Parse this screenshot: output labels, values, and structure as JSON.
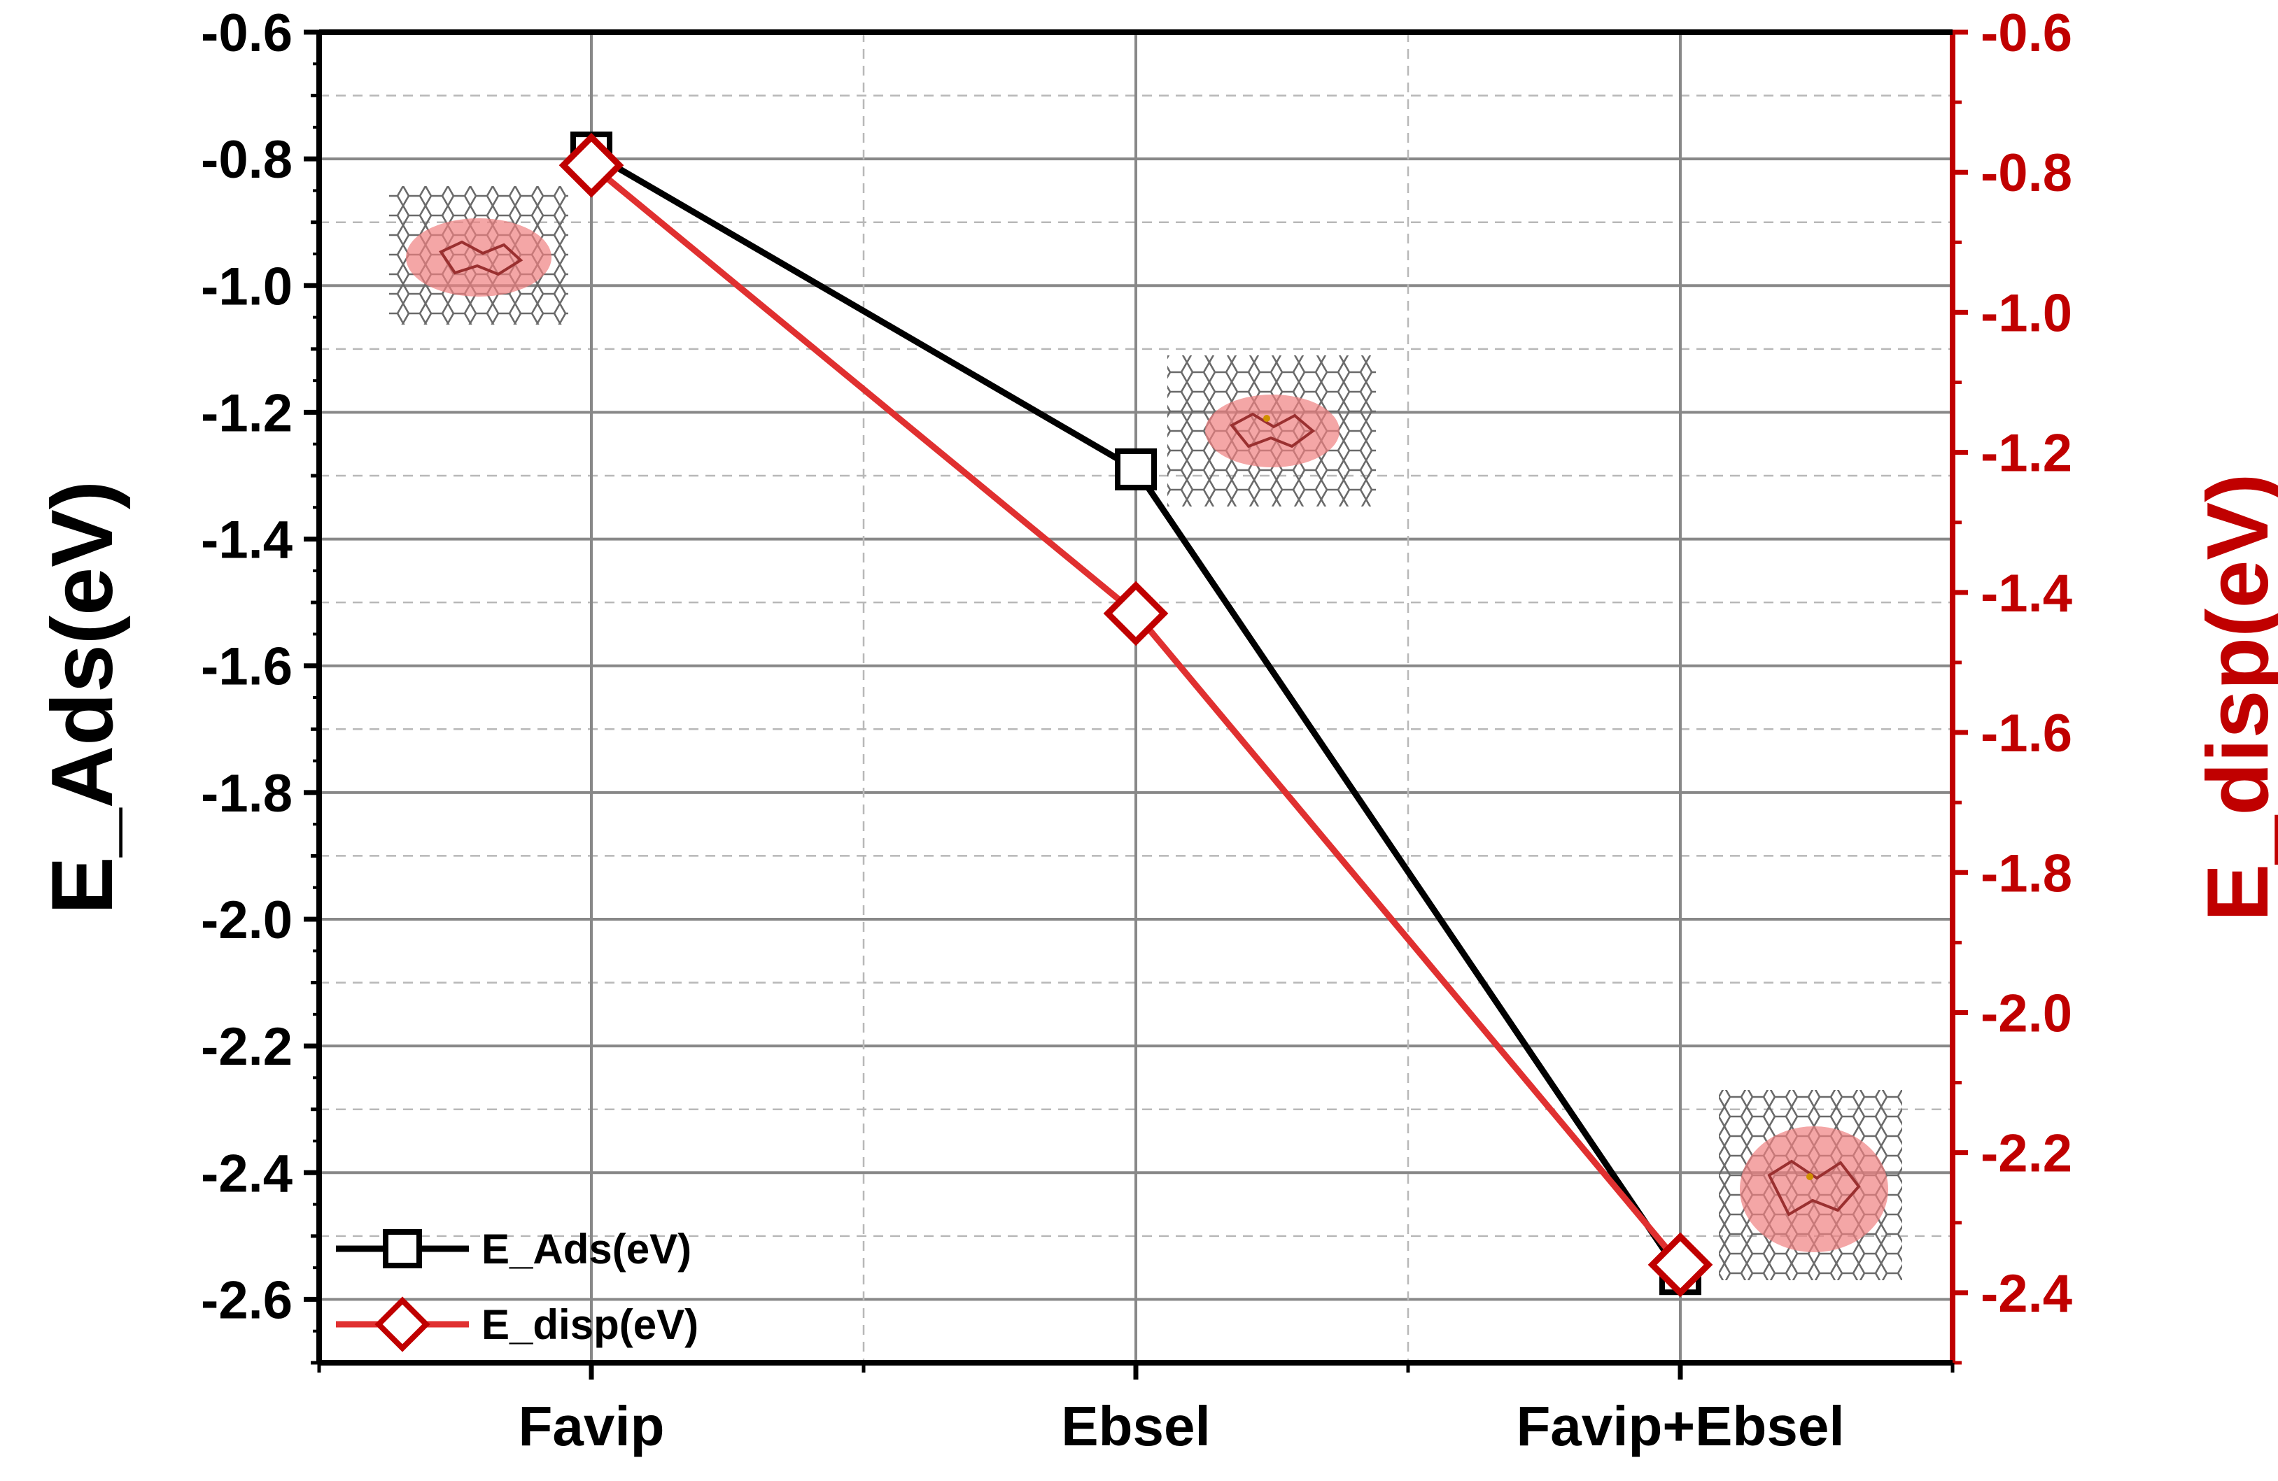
{
  "chart_data": {
    "type": "line",
    "categories": [
      "Favip",
      "Ebsel",
      "Favip+Ebsel"
    ],
    "series": [
      {
        "name": "E_Ads(eV)",
        "axis": "left",
        "color": "#000000",
        "marker": "square",
        "values": [
          -0.79,
          -1.29,
          -2.56
        ]
      },
      {
        "name": "E_disp(eV)",
        "axis": "right",
        "color": "#e03030",
        "marker_color": "#c00000",
        "marker": "diamond",
        "values": [
          -0.79,
          -1.43,
          -2.36
        ]
      }
    ],
    "ylabel_left": "E_Ads(eV)",
    "ylabel_right": "E_disp(eV)",
    "ylim_left": [
      -2.7,
      -0.6
    ],
    "ylim_right": [
      -2.5,
      -0.6
    ],
    "yticks_left": [
      "-0.6",
      "-0.8",
      "-1.0",
      "-1.2",
      "-1.4",
      "-1.6",
      "-1.8",
      "-2.0",
      "-2.2",
      "-2.4",
      "-2.6"
    ],
    "yticks_right": [
      "-0.6",
      "-0.8",
      "-1.0",
      "-1.2",
      "-1.4",
      "-1.6",
      "-1.8",
      "-2.0",
      "-2.2",
      "-2.4"
    ],
    "grid": true,
    "legend": {
      "position": "bottom-left",
      "entries": [
        "E_Ads(eV)",
        "E_disp(eV)"
      ]
    },
    "colors": {
      "left_axis": "#000000",
      "right_axis": "#c00000",
      "grid": "#888888",
      "highlight": "#f08080"
    },
    "insets": [
      {
        "name": "favip-adsorption-structure-inset",
        "category": "Favip"
      },
      {
        "name": "ebsel-adsorption-structure-inset",
        "category": "Ebsel"
      },
      {
        "name": "favip-ebsel-adsorption-structure-inset",
        "category": "Favip+Ebsel"
      }
    ]
  }
}
